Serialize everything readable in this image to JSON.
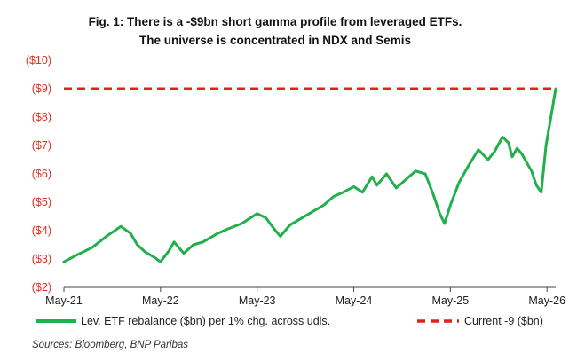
{
  "chart_data": {
    "type": "line",
    "title": "Fig. 1: There is a -$9bn short gamma profile from leveraged ETFs.",
    "subtitle": "The universe is concentrated in NDX and Semis",
    "xlabel": "",
    "ylabel": "",
    "x_ticks": [
      "May-21",
      "May-22",
      "May-23",
      "May-24",
      "May-25",
      "May-26"
    ],
    "x_range": [
      2021.36,
      2026.45
    ],
    "y_ticks": [
      "($10)",
      "($9)",
      "($8)",
      "($7)",
      "($6)",
      "($5)",
      "($4)",
      "($3)",
      "($2)"
    ],
    "ylim": [
      -10,
      -2
    ],
    "grid": false,
    "legend": "bottom",
    "series": [
      {
        "name": "Lev. ETF rebalance ($bn) per 1% chg. across udls.",
        "color": "#22b04c",
        "x": [
          2021.36,
          2021.5,
          2021.65,
          2021.8,
          2021.95,
          2022.05,
          2022.12,
          2022.2,
          2022.3,
          2022.36,
          2022.45,
          2022.5,
          2022.6,
          2022.7,
          2022.8,
          2022.95,
          2023.05,
          2023.2,
          2023.36,
          2023.45,
          2023.55,
          2023.6,
          2023.7,
          2023.8,
          2023.95,
          2024.05,
          2024.15,
          2024.25,
          2024.36,
          2024.45,
          2024.55,
          2024.6,
          2024.7,
          2024.8,
          2024.9,
          2025.0,
          2025.1,
          2025.18,
          2025.25,
          2025.3,
          2025.36,
          2025.45,
          2025.55,
          2025.65,
          2025.75,
          2025.82,
          2025.9,
          2025.96,
          2026.0,
          2026.05,
          2026.1,
          2026.15,
          2026.2,
          2026.25,
          2026.3,
          2026.35,
          2026.4,
          2026.45
        ],
        "values": [
          -2.9,
          -3.15,
          -3.4,
          -3.8,
          -4.15,
          -3.9,
          -3.5,
          -3.25,
          -3.05,
          -2.9,
          -3.3,
          -3.6,
          -3.2,
          -3.5,
          -3.6,
          -3.9,
          -4.05,
          -4.25,
          -4.6,
          -4.45,
          -4.0,
          -3.8,
          -4.2,
          -4.4,
          -4.7,
          -4.9,
          -5.2,
          -5.35,
          -5.55,
          -5.35,
          -5.9,
          -5.6,
          -6.0,
          -5.5,
          -5.8,
          -6.1,
          -6.0,
          -5.3,
          -4.6,
          -4.25,
          -4.9,
          -5.7,
          -6.3,
          -6.85,
          -6.5,
          -6.8,
          -7.3,
          -7.1,
          -6.6,
          -6.9,
          -6.7,
          -6.4,
          -6.1,
          -5.6,
          -5.35,
          -7.0,
          -8.0,
          -9.0
        ]
      },
      {
        "name": "Current -9 ($bn)",
        "color": "#e0201b",
        "x": [
          2021.36,
          2026.45
        ],
        "values": [
          -9,
          -9
        ]
      }
    ]
  },
  "source": "Sources: Bloomberg, BNP Paribas"
}
